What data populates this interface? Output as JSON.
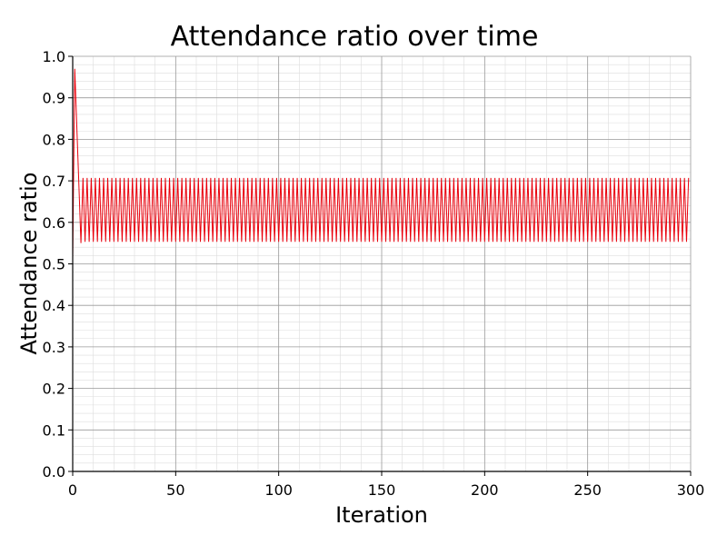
{
  "chart_data": {
    "type": "line",
    "title": "Attendance ratio over time",
    "xlabel": "Iteration",
    "ylabel": "Attendance ratio",
    "xlim": [
      0,
      300
    ],
    "ylim": [
      0.0,
      1.0
    ],
    "grid": true,
    "legend": "none",
    "colors": {
      "line": "#e8000b",
      "major_grid": "#999999",
      "minor_grid": "#dddddd",
      "axis": "#000000"
    },
    "x_ticks": [
      "0",
      "50",
      "100",
      "150",
      "200",
      "250",
      "300"
    ],
    "y_ticks": [
      "0.0",
      "0.1",
      "0.2",
      "0.3",
      "0.4",
      "0.5",
      "0.6",
      "0.7",
      "0.8",
      "0.9",
      "1.0"
    ],
    "series": [
      {
        "initial_points": [
          [
            0,
            0.51
          ],
          [
            1,
            0.97
          ],
          [
            4,
            0.55
          ]
        ],
        "oscillation": {
          "start_iteration": 4,
          "end_iteration": 299,
          "low": 0.553,
          "high": 0.707,
          "period": 2
        }
      }
    ]
  }
}
